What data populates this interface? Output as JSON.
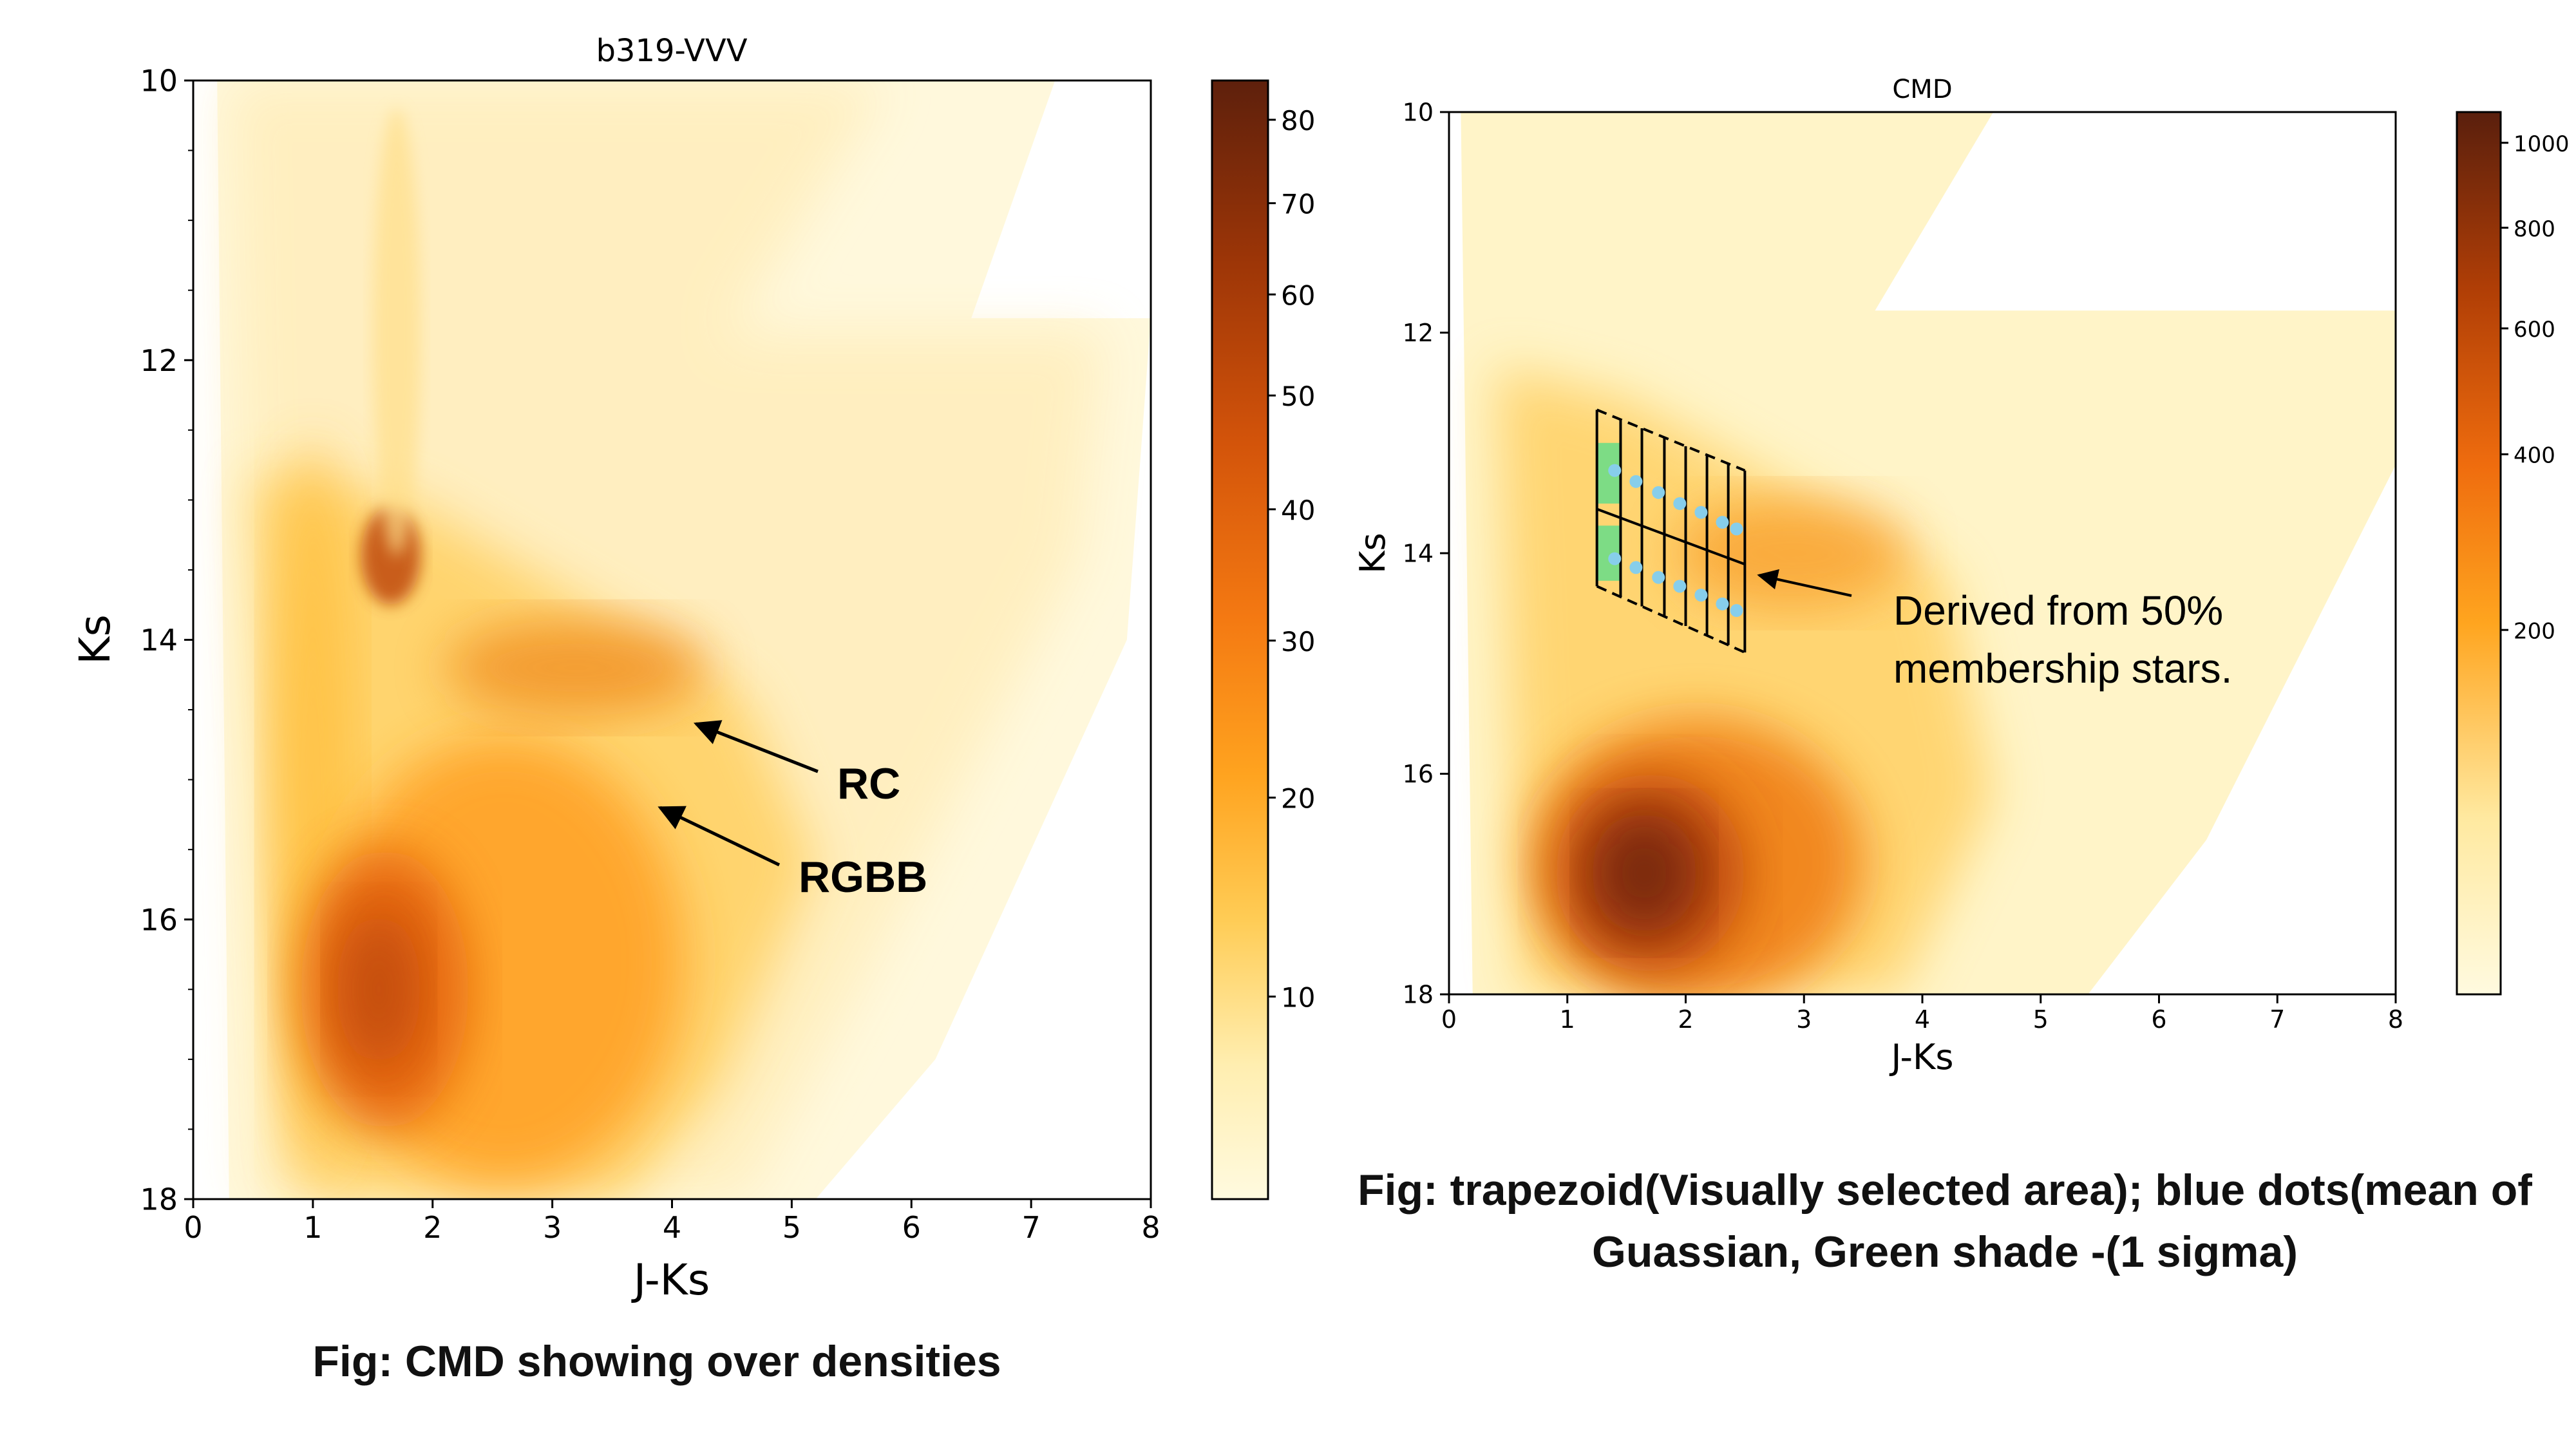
{
  "chart_data": [
    {
      "type": "heatmap",
      "title": "b319-VVV",
      "xlabel": "J-Ks",
      "ylabel": "Ks",
      "xlim": [
        0,
        8
      ],
      "ylim": [
        18,
        10
      ],
      "y_inverted": true,
      "xticks": [
        "0",
        "1",
        "2",
        "3",
        "4",
        "5",
        "6",
        "7",
        "8"
      ],
      "yticks": [
        "10",
        "12",
        "14",
        "16",
        "18"
      ],
      "colorbar": {
        "range": [
          0,
          85
        ],
        "ticks": [
          "10",
          "20",
          "30",
          "40",
          "50",
          "60",
          "70",
          "80"
        ],
        "tick_values": [
          10,
          20,
          30,
          40,
          50,
          60,
          70,
          80
        ],
        "colormap": "YlOrBr-like (pale yellow to dark brown)"
      },
      "annotations": [
        {
          "text": "RC",
          "point": [
            4.2,
            14.6
          ]
        },
        {
          "text": "RGBB",
          "point": [
            3.9,
            15.2
          ]
        }
      ]
    },
    {
      "type": "heatmap",
      "title": "CMD",
      "xlabel": "J-Ks",
      "ylabel": "Ks",
      "xlim": [
        0,
        8
      ],
      "ylim": [
        18,
        10
      ],
      "y_inverted": true,
      "xticks": [
        "0",
        "1",
        "2",
        "3",
        "4",
        "5",
        "6",
        "7",
        "8"
      ],
      "yticks": [
        "10",
        "12",
        "14",
        "16",
        "18"
      ],
      "colorbar": {
        "range": [
          0,
          1080
        ],
        "ticks": [
          "200",
          "400",
          "600",
          "800",
          "1000"
        ],
        "tick_values": [
          200,
          400,
          600,
          800,
          1000
        ],
        "colormap": "YlOrBr-like (pale yellow to dark brown)"
      },
      "trapezoid": {
        "corners": [
          [
            1.25,
            12.7
          ],
          [
            2.5,
            13.25
          ],
          [
            2.5,
            14.9
          ],
          [
            1.25,
            14.3
          ]
        ],
        "columns_x": [
          1.25,
          1.45,
          1.63,
          1.82,
          2.0,
          2.18,
          2.36,
          2.5
        ],
        "mean_line": [
          [
            1.25,
            13.6
          ],
          [
            2.5,
            14.1
          ]
        ]
      },
      "blue_dots": [
        {
          "x": 1.4,
          "y": 13.25
        },
        {
          "x": 1.58,
          "y": 13.35
        },
        {
          "x": 1.77,
          "y": 13.45
        },
        {
          "x": 1.95,
          "y": 13.55
        },
        {
          "x": 2.13,
          "y": 13.63
        },
        {
          "x": 2.31,
          "y": 13.72
        },
        {
          "x": 2.43,
          "y": 13.78
        },
        {
          "x": 1.4,
          "y": 14.05
        },
        {
          "x": 1.58,
          "y": 14.13
        },
        {
          "x": 1.77,
          "y": 14.22
        },
        {
          "x": 1.95,
          "y": 14.3
        },
        {
          "x": 2.13,
          "y": 14.38
        },
        {
          "x": 2.31,
          "y": 14.46
        },
        {
          "x": 2.43,
          "y": 14.52
        }
      ],
      "green_shade": [
        {
          "x0": 1.25,
          "x1": 1.45,
          "y0": 13.0,
          "y1": 13.55
        },
        {
          "x0": 1.25,
          "x1": 1.45,
          "y0": 13.75,
          "y1": 14.25
        }
      ],
      "annotation": {
        "lines": [
          "Derived from 50%",
          "membership stars."
        ],
        "point": [
          2.62,
          14.2
        ]
      }
    }
  ],
  "captions": {
    "left": "Fig: CMD showing over densities",
    "right_line1": "Fig: trapezoid(Visually selected area); blue dots(mean of",
    "right_line2": "Guassian, Green shade -(1 sigma)"
  },
  "colors": {
    "cmap_stops": [
      "#ffffff",
      "#fff8dc",
      "#ffe9a3",
      "#ffc64a",
      "#ff9d1f",
      "#f07410",
      "#cc4b07",
      "#943008",
      "#5a1f0d"
    ],
    "blue_dot": "#87ceeb",
    "green_shade": "#66dd88",
    "axis": "#000000"
  }
}
